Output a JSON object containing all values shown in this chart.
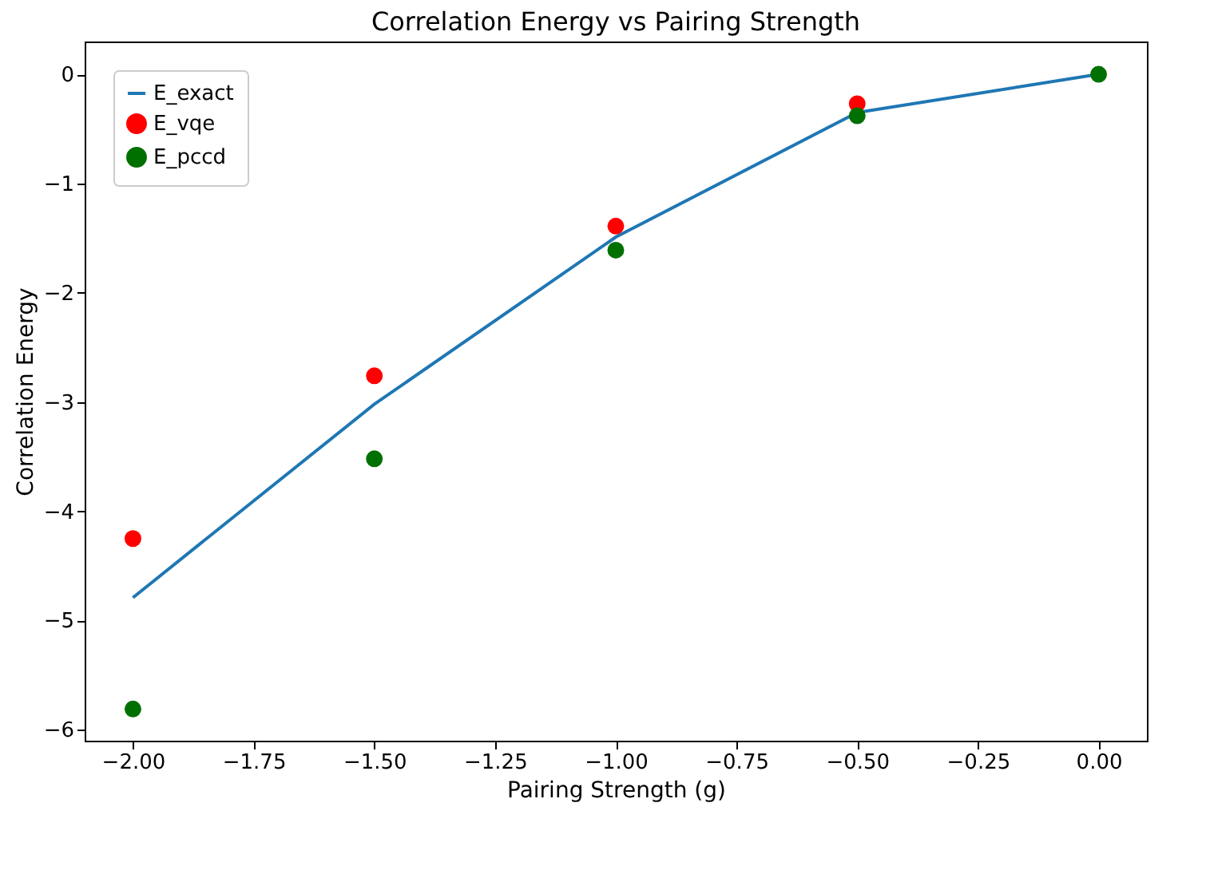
{
  "chart_data": {
    "type": "line",
    "title": "Correlation Energy vs Pairing Strength",
    "xlabel": "Pairing Strength (g)",
    "ylabel": "Correlation Energy",
    "x": [
      -2.0,
      -1.5,
      -1.0,
      -0.5,
      0.0
    ],
    "series": [
      {
        "name": "E_exact",
        "color": "#1f77b4",
        "values": [
          -4.79,
          -3.02,
          -1.49,
          -0.35,
          0
        ]
      },
      {
        "name": "E_vqe",
        "type": "scatter",
        "marker": "circle",
        "color": "#ff0000",
        "values": [
          -4.25,
          -2.76,
          -1.39,
          -0.27,
          null
        ]
      },
      {
        "name": "E_pccd",
        "type": "scatter",
        "marker": "circle",
        "color": "#007000",
        "values": [
          -5.81,
          -3.52,
          -1.61,
          -0.38,
          0
        ]
      }
    ],
    "xlim": [
      -2.1,
      0.1
    ],
    "xticks": [
      {
        "value": -2,
        "label": "−2.00"
      },
      {
        "value": -1.75,
        "label": "−1.75"
      },
      {
        "value": -1.5,
        "label": "−1.50"
      },
      {
        "value": -1.25,
        "label": "−1.25"
      },
      {
        "value": -1,
        "label": "−1.00"
      },
      {
        "value": -0.75,
        "label": "−0.75"
      },
      {
        "value": -0.5,
        "label": "−0.50"
      },
      {
        "value": -0.25,
        "label": "−0.25"
      },
      {
        "value": 0,
        "label": "0.00"
      }
    ],
    "ylim": [
      -6.1,
      0.3
    ],
    "yticks": [
      {
        "value": -6,
        "label": "−6"
      },
      {
        "value": -5,
        "label": "−5"
      },
      {
        "value": -4,
        "label": "−4"
      },
      {
        "value": -3,
        "label": "−3"
      },
      {
        "value": -2,
        "label": "−2"
      },
      {
        "value": -1,
        "label": "−1"
      },
      0
    ],
    "legend": "top left",
    "grid": false,
    "line_style": "solid"
  }
}
